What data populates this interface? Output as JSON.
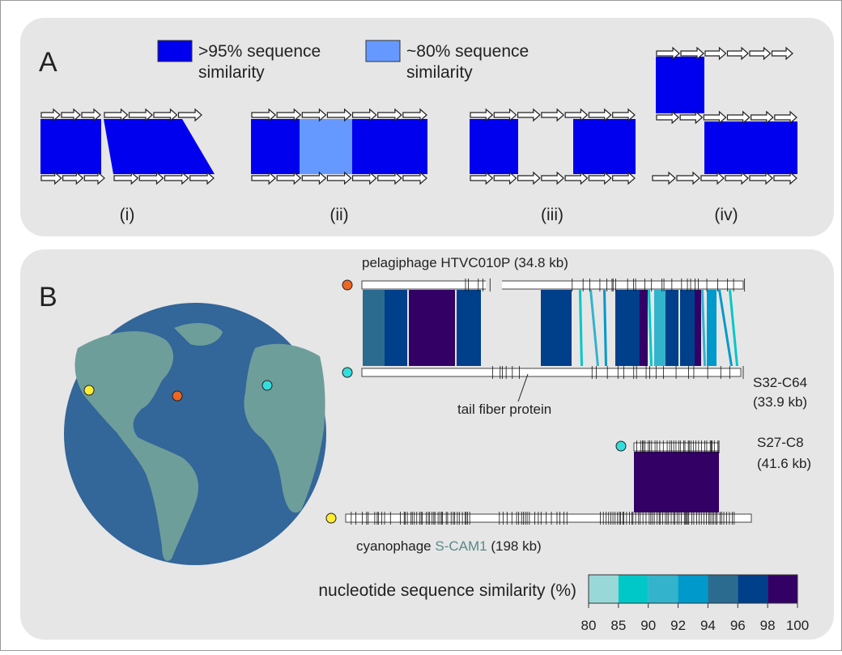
{
  "panel_a": {
    "label": "A",
    "legend": [
      {
        "text_1": ">95% sequence",
        "text_2": "similarity",
        "color": "#0000ee"
      },
      {
        "text_1": "~80% sequence",
        "text_2": "similarity",
        "color": "#6699ff"
      }
    ],
    "cases": [
      "(i)",
      "(ii)",
      "(iii)",
      "(iv)"
    ]
  },
  "panel_b": {
    "label": "B",
    "genome_top": "pelagiphage HTVC010P (34.8 kb)",
    "genome_s32": [
      "S32-C64",
      "(33.9 kb)"
    ],
    "annotation": "tail fiber protein",
    "genome_s27": [
      "S27-C8",
      "(41.6 kb)"
    ],
    "genome_scam": {
      "prefix": "cyanophage",
      "name": "S-CAM1",
      "suffix": "(198 kb)"
    },
    "colorbar": {
      "label": "nucleotide sequence similarity (%)",
      "ticks": [
        80,
        85,
        90,
        92,
        94,
        96,
        98,
        100
      ],
      "colors": [
        "#99d8d8",
        "#00c8c8",
        "#33b3cc",
        "#0099cc",
        "#2b6b8f",
        "#003f8a",
        "#330066"
      ]
    }
  }
}
